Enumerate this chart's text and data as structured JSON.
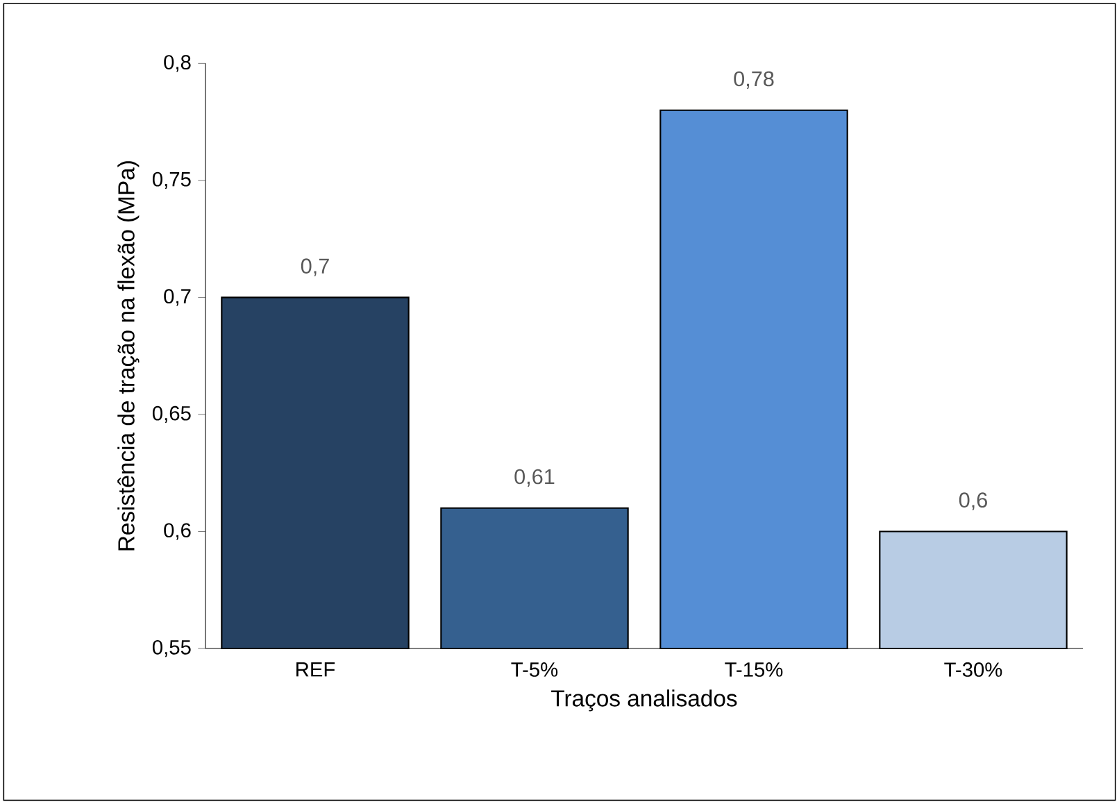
{
  "chart_data": {
    "type": "bar",
    "xlabel": "Traços analisados",
    "ylabel": "Resistência de tração na flexão (MPa)",
    "categories": [
      "REF",
      "T-5%",
      "T-15%",
      "T-30%"
    ],
    "values": [
      0.7,
      0.61,
      0.78,
      0.6
    ],
    "colors": [
      "#264263",
      "#35608f",
      "#558ed5",
      "#b8cce4"
    ],
    "value_labels": [
      "0,7",
      "0,61",
      "0,78",
      "0,6"
    ],
    "ylim": [
      0.55,
      0.8
    ],
    "yticks": [
      {
        "value": 0.55,
        "label": "0,55"
      },
      {
        "value": 0.6,
        "label": "0,6"
      },
      {
        "value": 0.65,
        "label": "0,65"
      },
      {
        "value": 0.7,
        "label": "0,7"
      },
      {
        "value": 0.75,
        "label": "0,75"
      },
      {
        "value": 0.8,
        "label": "0,8"
      }
    ],
    "grid": false
  }
}
